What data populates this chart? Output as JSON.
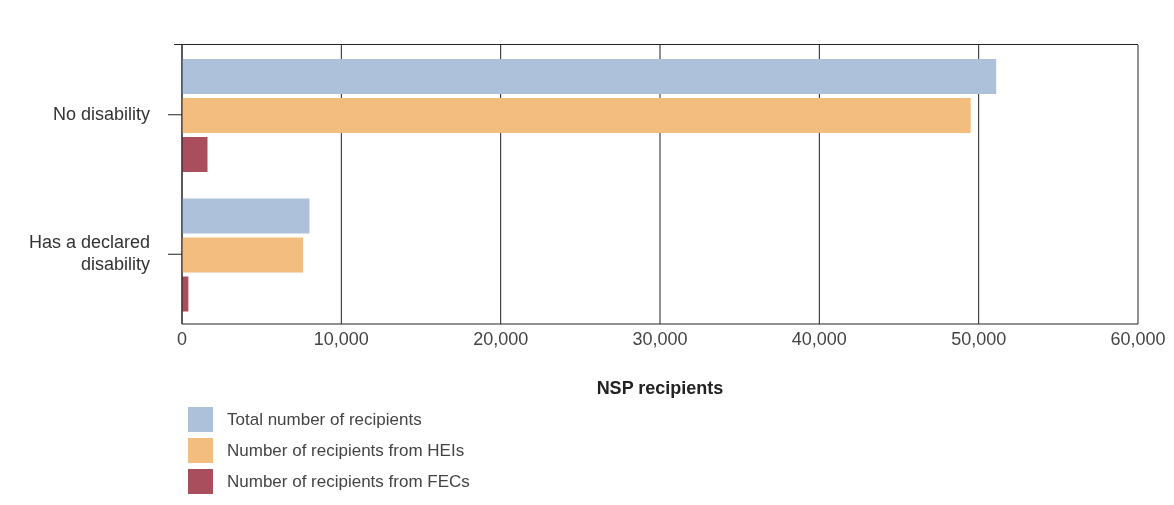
{
  "chart_data": {
    "type": "bar",
    "orientation": "horizontal",
    "categories": [
      "No disability",
      "Has a declared disability"
    ],
    "series": [
      {
        "name": "Total number of recipients",
        "color": "#adc2da",
        "values": [
          51100,
          8000
        ]
      },
      {
        "name": "Number of recipients from HEIs",
        "color": "#f2bd7e",
        "values": [
          49500,
          7600
        ]
      },
      {
        "name": "Number of recipients from FECs",
        "color": "#a94e5c",
        "values": [
          1600,
          400
        ]
      }
    ],
    "xlabel": "NSP recipients",
    "xlim": [
      0,
      60000
    ],
    "xticks": [
      {
        "value": 0,
        "label": "0"
      },
      {
        "value": 10000,
        "label": "10,000"
      },
      {
        "value": 20000,
        "label": "20,000"
      },
      {
        "value": 30000,
        "label": "30,000"
      },
      {
        "value": 40000,
        "label": "40,000"
      },
      {
        "value": 50000,
        "label": "50,000"
      },
      {
        "value": 60000,
        "label": "60,000"
      }
    ],
    "grid": "x",
    "legend": "bottom"
  }
}
